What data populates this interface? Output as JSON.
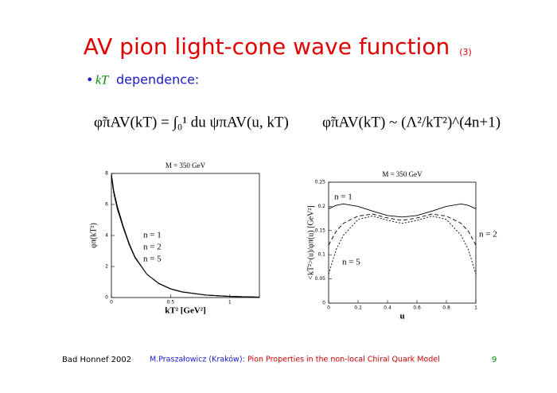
{
  "title": "AV pion light-cone wave function",
  "title_note": "(3)",
  "bullet": {
    "symbol": "kT",
    "text": "dependence:"
  },
  "formulas": [
    "φ̃πAV(kT) = ∫₀¹ du ψπAV(u, kT)",
    "φ̃πAV(kT) ~ (Λ²/kT²)^(4n+1)"
  ],
  "footer": {
    "event": "Bad Honnef 2002",
    "author": "M.Praszałowicz (Kraków):",
    "talk": "Pion Properties in the non-local Chiral Quark Model",
    "page": "9"
  },
  "chart_data": [
    {
      "type": "line",
      "title": "M = 350 GeV",
      "x_label": "kT² [GeV²]",
      "y_label": "φπ(kT²)",
      "x": [
        0,
        0.02,
        0.05,
        0.1,
        0.15,
        0.2,
        0.3,
        0.4,
        0.5,
        0.6,
        0.8,
        1.0,
        1.25
      ],
      "series": [
        {
          "name": "n = 1",
          "color": "#000000",
          "line_style": "solid",
          "values": [
            8.0,
            6.9,
            5.9,
            4.6,
            3.5,
            2.6,
            1.5,
            0.9,
            0.55,
            0.35,
            0.15,
            0.07,
            0.03
          ]
        },
        {
          "name": "n = 2",
          "color": "#000000",
          "line_style": "solid",
          "values": [
            7.9,
            6.8,
            5.8,
            4.5,
            3.45,
            2.6,
            1.5,
            0.9,
            0.56,
            0.36,
            0.16,
            0.07,
            0.03
          ]
        },
        {
          "name": "n = 5",
          "color": "#000000",
          "line_style": "solid",
          "values": [
            7.8,
            6.7,
            5.7,
            4.5,
            3.4,
            2.55,
            1.5,
            0.92,
            0.57,
            0.37,
            0.16,
            0.08,
            0.03
          ]
        }
      ],
      "xlim": [
        0,
        1.25
      ],
      "xticks": [
        0,
        0.5,
        1
      ],
      "ylim": [
        0,
        8
      ],
      "yticks": [
        0,
        2,
        4,
        6,
        8
      ]
    },
    {
      "type": "line",
      "title": "M = 350 GeV",
      "x_label": "u",
      "y_label": "<kT²>(u)/φπ(u) [GeV²]",
      "x": [
        0,
        0.05,
        0.1,
        0.2,
        0.3,
        0.4,
        0.5,
        0.6,
        0.7,
        0.8,
        0.9,
        0.95,
        1
      ],
      "series": [
        {
          "name": "n = 1",
          "color": "#000000",
          "line_style": "solid",
          "values": [
            0.195,
            0.202,
            0.205,
            0.2,
            0.19,
            0.181,
            0.178,
            0.181,
            0.19,
            0.2,
            0.205,
            0.202,
            0.195
          ]
        },
        {
          "name": "n = 2",
          "color": "#000000",
          "line_style": "dashed",
          "values": [
            0.12,
            0.148,
            0.165,
            0.18,
            0.184,
            0.176,
            0.171,
            0.176,
            0.184,
            0.18,
            0.165,
            0.148,
            0.12
          ]
        },
        {
          "name": "n = 5",
          "color": "#000000",
          "line_style": "dotted",
          "values": [
            0.06,
            0.11,
            0.14,
            0.173,
            0.18,
            0.171,
            0.165,
            0.171,
            0.18,
            0.173,
            0.14,
            0.11,
            0.06
          ]
        }
      ],
      "xlim": [
        0,
        1
      ],
      "xticks": [
        0,
        0.2,
        0.4,
        0.6,
        0.8,
        1
      ],
      "ylim": [
        0,
        0.25
      ],
      "yticks": [
        0,
        0.05,
        0.1,
        0.15,
        0.2,
        0.25
      ]
    }
  ]
}
